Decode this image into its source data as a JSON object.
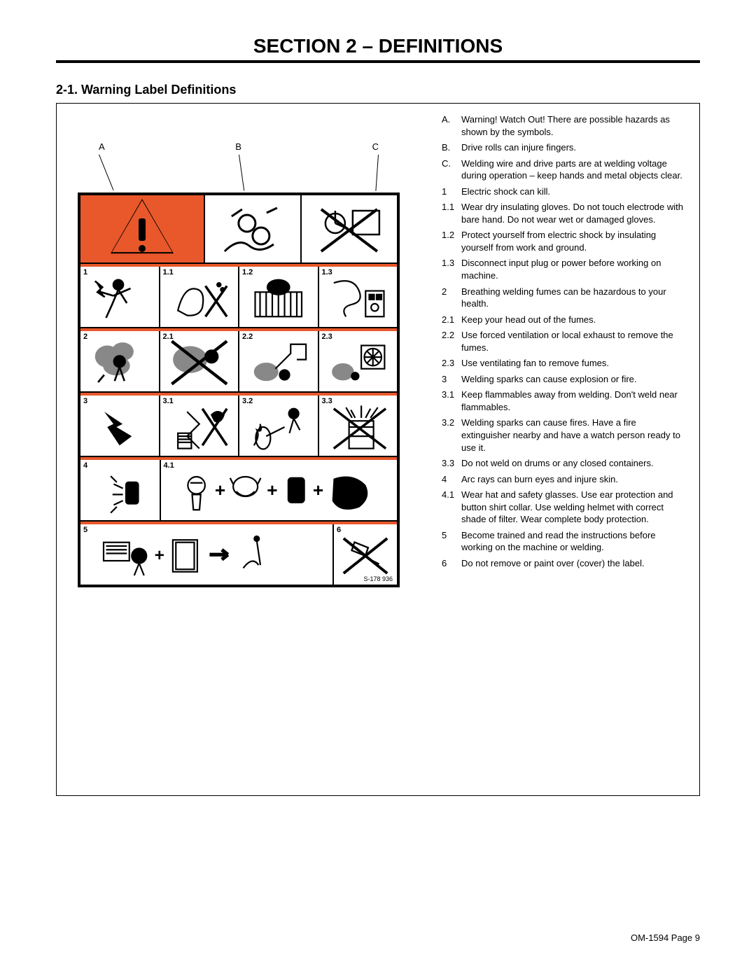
{
  "section_title": "SECTION 2 – DEFINITIONS",
  "subsection_title": "2-1.   Warning Label Definitions",
  "callout_labels": [
    "A",
    "B",
    "C"
  ],
  "label_ref": "S-178 936",
  "grid": {
    "row1": [
      "1",
      "1.1",
      "1.2",
      "1.3"
    ],
    "row2": [
      "2",
      "2.1",
      "2.2",
      "2.3"
    ],
    "row3": [
      "3",
      "3.1",
      "3.2",
      "3.3"
    ],
    "row4": [
      "4",
      "4.1"
    ],
    "row5": [
      "5",
      "6"
    ]
  },
  "definitions": [
    {
      "k": "A.",
      "t": "Warning! Watch Out! There are possible hazards as shown by the symbols."
    },
    {
      "k": "B.",
      "t": "Drive rolls can injure fingers."
    },
    {
      "k": "C.",
      "t": "Welding wire and drive parts are at welding voltage during operation – keep hands and metal objects clear."
    },
    {
      "k": "1",
      "t": "Electric shock can kill."
    },
    {
      "k": "1.1",
      "t": "Wear dry insulating gloves. Do not touch electrode with bare hand. Do not wear wet or damaged gloves."
    },
    {
      "k": "1.2",
      "t": "Protect yourself from electric shock by insulating yourself from work and ground."
    },
    {
      "k": "1.3",
      "t": "Disconnect input plug or power before working on machine."
    },
    {
      "k": "2",
      "t": "Breathing welding fumes can be hazardous to your health."
    },
    {
      "k": "2.1",
      "t": "Keep your head out of the fumes."
    },
    {
      "k": "2.2",
      "t": "Use forced ventilation or local exhaust to remove the fumes."
    },
    {
      "k": "2.3",
      "t": "Use ventilating fan to remove fumes."
    },
    {
      "k": "3",
      "t": "Welding sparks can cause explosion or fire."
    },
    {
      "k": "3.1",
      "t": "Keep flammables away from welding. Don't weld near flammables."
    },
    {
      "k": "3.2",
      "t": "Welding sparks can cause fires. Have a fire extinguisher nearby and have a watch person ready to use it."
    },
    {
      "k": "3.3",
      "t": "Do not weld on drums or any closed containers."
    },
    {
      "k": "4",
      "t": "Arc rays can burn eyes and injure skin."
    },
    {
      "k": "4.1",
      "t": "Wear hat and safety glasses. Use ear protection and button shirt collar. Use welding helmet with correct shade of filter. Wear complete body protection."
    },
    {
      "k": "5",
      "t": "Become trained and read the instructions before working on the machine or welding."
    },
    {
      "k": "6",
      "t": "Do not remove or paint over (cover) the label."
    }
  ],
  "page_footer": "OM-1594 Page 9",
  "colors": {
    "orange": "#e8582b",
    "black": "#000",
    "white": "#fff"
  }
}
